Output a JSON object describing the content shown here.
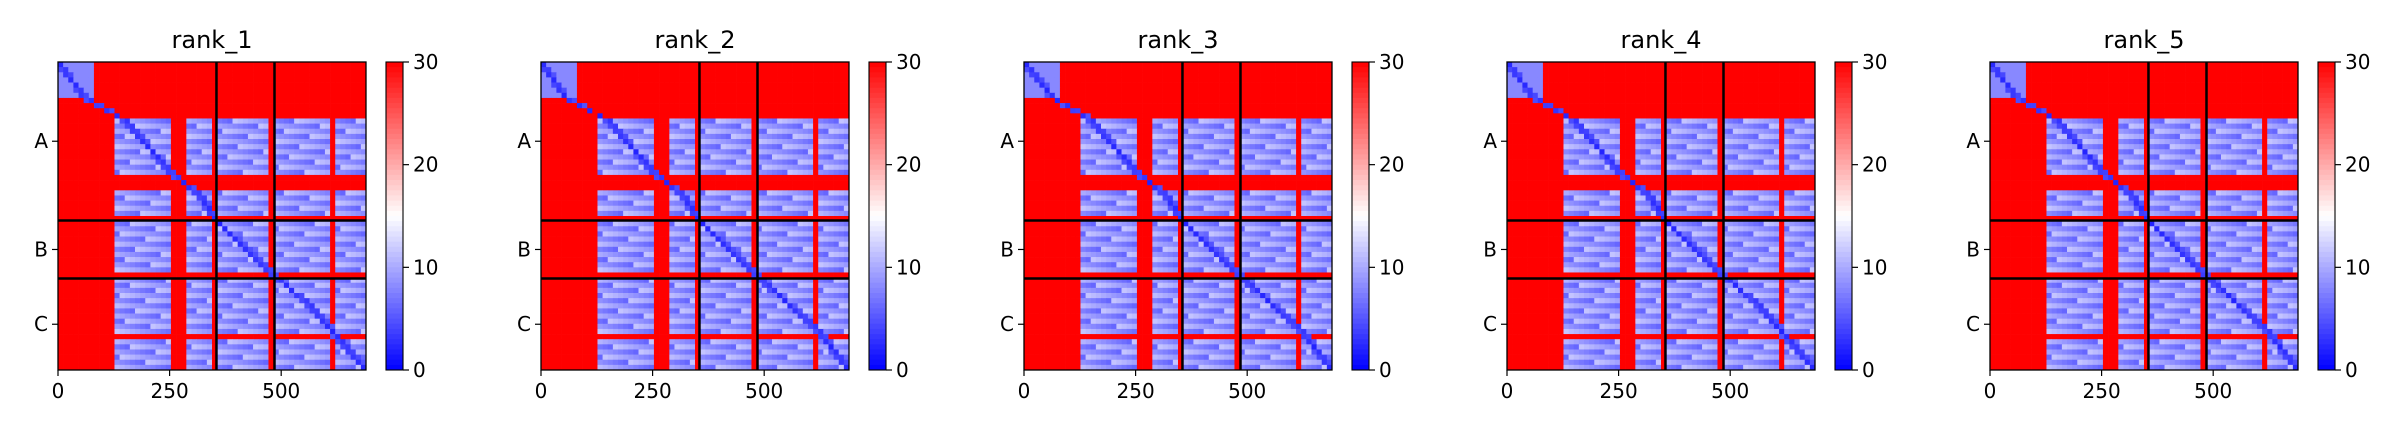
{
  "figure": {
    "colormap": {
      "low": "#0000ff",
      "mid": "#ffffff",
      "high": "#ff0000"
    },
    "vmin": 0,
    "vmax": 30,
    "colorbar_ticks": [
      "0",
      "10",
      "20",
      "30"
    ],
    "line_color": "#000000"
  },
  "chart_data": [
    {
      "type": "heatmap",
      "title": "rank_1",
      "xlabel": "",
      "ylabel": "",
      "xlim": [
        0,
        690
      ],
      "ylim": [
        690,
        0
      ],
      "xticks": [
        0,
        250,
        500
      ],
      "xtick_labels": [
        "0",
        "250",
        "500"
      ],
      "chains": [
        "A",
        "B",
        "C"
      ],
      "chain_boundaries": [
        355,
        485
      ],
      "domains": [
        [
          0,
          80
        ],
        [
          130,
          255
        ],
        [
          285,
          340
        ],
        [
          355,
          475
        ],
        [
          485,
          615
        ],
        [
          620,
          690
        ]
      ],
      "diagonal_path": [
        [
          0,
          0
        ],
        [
          80,
          60
        ],
        [
          130,
          150
        ],
        [
          250,
          255
        ],
        [
          300,
          320
        ],
        [
          340,
          345
        ],
        [
          355,
          355
        ],
        [
          480,
          485
        ],
        [
          540,
          560
        ],
        [
          690,
          690
        ]
      ]
    },
    {
      "type": "heatmap",
      "title": "rank_2",
      "xlabel": "",
      "ylabel": "",
      "xlim": [
        0,
        690
      ],
      "ylim": [
        690,
        0
      ],
      "xticks": [
        0,
        250,
        500
      ],
      "xtick_labels": [
        "0",
        "250",
        "500"
      ],
      "chains": [
        "A",
        "B",
        "C"
      ],
      "chain_boundaries": [
        355,
        485
      ],
      "domains": [
        [
          0,
          80
        ],
        [
          130,
          255
        ],
        [
          285,
          340
        ],
        [
          355,
          475
        ],
        [
          485,
          615
        ],
        [
          620,
          690
        ]
      ],
      "diagonal_path": [
        [
          0,
          0
        ],
        [
          80,
          55
        ],
        [
          130,
          150
        ],
        [
          250,
          255
        ],
        [
          300,
          320
        ],
        [
          340,
          345
        ],
        [
          355,
          355
        ],
        [
          480,
          485
        ],
        [
          600,
          620
        ],
        [
          690,
          690
        ]
      ]
    },
    {
      "type": "heatmap",
      "title": "rank_3",
      "xlabel": "",
      "ylabel": "",
      "xlim": [
        0,
        690
      ],
      "ylim": [
        690,
        0
      ],
      "xticks": [
        0,
        250,
        500
      ],
      "xtick_labels": [
        "0",
        "250",
        "500"
      ],
      "chains": [
        "A",
        "B",
        "C"
      ],
      "chain_boundaries": [
        355,
        485
      ],
      "domains": [
        [
          0,
          80
        ],
        [
          130,
          255
        ],
        [
          285,
          340
        ],
        [
          355,
          475
        ],
        [
          485,
          615
        ],
        [
          620,
          690
        ]
      ],
      "diagonal_path": [
        [
          0,
          0
        ],
        [
          80,
          65
        ],
        [
          130,
          150
        ],
        [
          250,
          255
        ],
        [
          300,
          320
        ],
        [
          340,
          345
        ],
        [
          355,
          355
        ],
        [
          480,
          485
        ],
        [
          600,
          620
        ],
        [
          690,
          690
        ]
      ]
    },
    {
      "type": "heatmap",
      "title": "rank_4",
      "xlabel": "",
      "ylabel": "",
      "xlim": [
        0,
        690
      ],
      "ylim": [
        690,
        0
      ],
      "xticks": [
        0,
        250,
        500
      ],
      "xtick_labels": [
        "0",
        "250",
        "500"
      ],
      "chains": [
        "A",
        "B",
        "C"
      ],
      "chain_boundaries": [
        355,
        485
      ],
      "domains": [
        [
          0,
          80
        ],
        [
          130,
          255
        ],
        [
          285,
          340
        ],
        [
          355,
          475
        ],
        [
          485,
          615
        ],
        [
          620,
          690
        ]
      ],
      "diagonal_path": [
        [
          0,
          0
        ],
        [
          80,
          60
        ],
        [
          130,
          150
        ],
        [
          250,
          255
        ],
        [
          300,
          320
        ],
        [
          340,
          345
        ],
        [
          355,
          355
        ],
        [
          480,
          485
        ],
        [
          540,
          560
        ],
        [
          690,
          690
        ]
      ]
    },
    {
      "type": "heatmap",
      "title": "rank_5",
      "xlabel": "",
      "ylabel": "",
      "xlim": [
        0,
        690
      ],
      "ylim": [
        690,
        0
      ],
      "xticks": [
        0,
        250,
        500
      ],
      "xtick_labels": [
        "0",
        "250",
        "500"
      ],
      "chains": [
        "A",
        "B",
        "C"
      ],
      "chain_boundaries": [
        355,
        485
      ],
      "domains": [
        [
          0,
          80
        ],
        [
          130,
          255
        ],
        [
          285,
          340
        ],
        [
          355,
          475
        ],
        [
          485,
          615
        ],
        [
          620,
          690
        ]
      ],
      "diagonal_path": [
        [
          0,
          0
        ],
        [
          80,
          60
        ],
        [
          130,
          150
        ],
        [
          250,
          255
        ],
        [
          300,
          320
        ],
        [
          340,
          345
        ],
        [
          355,
          355
        ],
        [
          480,
          485
        ],
        [
          600,
          620
        ],
        [
          690,
          690
        ]
      ]
    }
  ]
}
